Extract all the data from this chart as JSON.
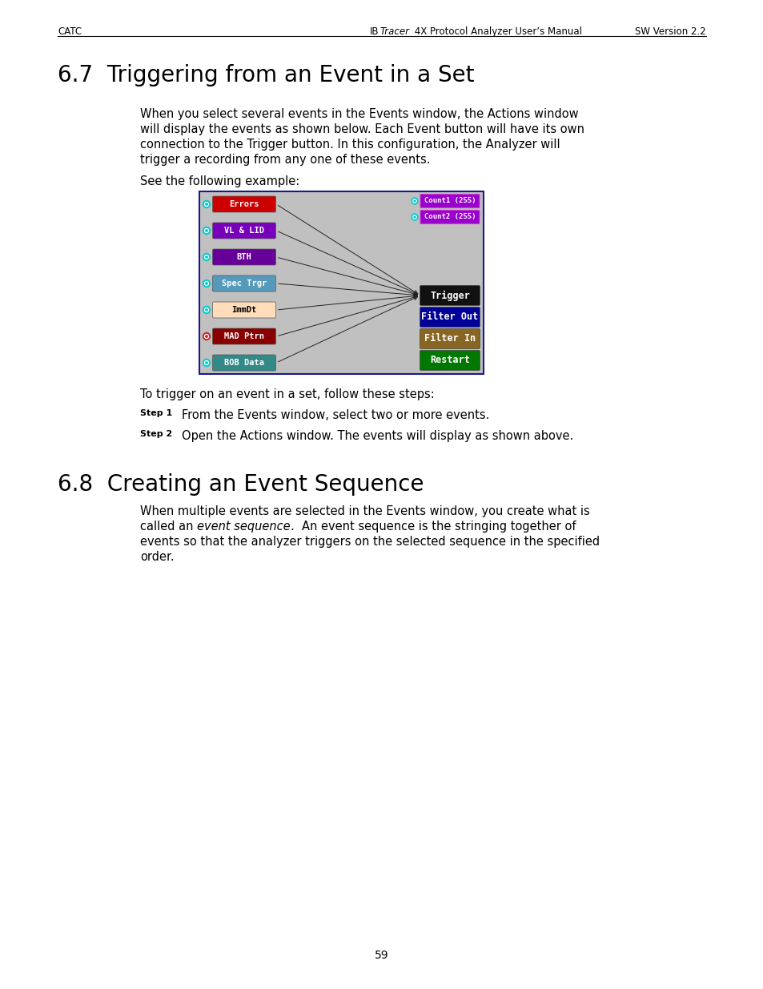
{
  "page_bg": "#ffffff",
  "header_text_left": "CATC",
  "header_text_right": "SW Version 2.2",
  "section1_title": "6.7  Triggering from an Event in a Set",
  "section1_body_lines": [
    "When you select several events in the Events window, the Actions window",
    "will display the events as shown below. Each Event button will have its own",
    "connection to the Trigger button. In this configuration, the Analyzer will",
    "trigger a recording from any one of these events."
  ],
  "see_example": "See the following example:",
  "diagram": {
    "bg": "#c0c0c0",
    "border_color": "#1a1a8c",
    "left_buttons": [
      {
        "label": "Errors",
        "bg": "#cc0000",
        "fg": "#ffffff",
        "dot": "#00cccc"
      },
      {
        "label": "VL & LID",
        "bg": "#7700bb",
        "fg": "#ffffff",
        "dot": "#00cccc"
      },
      {
        "label": "BTH",
        "bg": "#660099",
        "fg": "#ffffff",
        "dot": "#00cccc"
      },
      {
        "label": "Spec Trgr",
        "bg": "#5599bb",
        "fg": "#ffffff",
        "dot": "#00cccc"
      },
      {
        "label": "ImmDt",
        "bg": "#ffddbb",
        "fg": "#000000",
        "dot": "#00cccc"
      },
      {
        "label": "MAD Ptrn",
        "bg": "#880000",
        "fg": "#ffffff",
        "dot": "#cc2222"
      },
      {
        "label": "BOB Data",
        "bg": "#338888",
        "fg": "#ffffff",
        "dot": "#00cccc"
      }
    ],
    "right_top_buttons": [
      {
        "label": "Count1 (255)",
        "bg": "#9900cc",
        "fg": "#ffffff",
        "dot": "#00cccc"
      },
      {
        "label": "Count2 (255)",
        "bg": "#9900cc",
        "fg": "#ffffff",
        "dot": "#00cccc"
      }
    ],
    "right_action_buttons": [
      {
        "label": "Trigger",
        "bg": "#111111",
        "fg": "#ffffff"
      },
      {
        "label": "Filter Out",
        "bg": "#000099",
        "fg": "#ffffff"
      },
      {
        "label": "Filter In",
        "bg": "#886622",
        "fg": "#ffffff"
      },
      {
        "label": "Restart",
        "bg": "#007700",
        "fg": "#ffffff"
      }
    ]
  },
  "trigger_steps_intro": "To trigger on an event in a set, follow these steps:",
  "steps": [
    {
      "num": "Step 1",
      "text": "From the Events window, select two or more events."
    },
    {
      "num": "Step 2",
      "text": "Open the Actions window. The events will display as shown above."
    }
  ],
  "section2_title": "6.8  Creating an Event Sequence",
  "section2_body_lines": [
    "When multiple events are selected in the Events window, you create what is",
    "called an @event sequence@.  An event sequence is the stringing together of",
    "events so that the analyzer triggers on the selected sequence in the specified",
    "order."
  ],
  "footer_page": "59",
  "title_fontsize": 20,
  "body_fontsize": 10.5,
  "header_fontsize": 8.5,
  "step_num_fontsize": 8,
  "step_text_fontsize": 10.5
}
